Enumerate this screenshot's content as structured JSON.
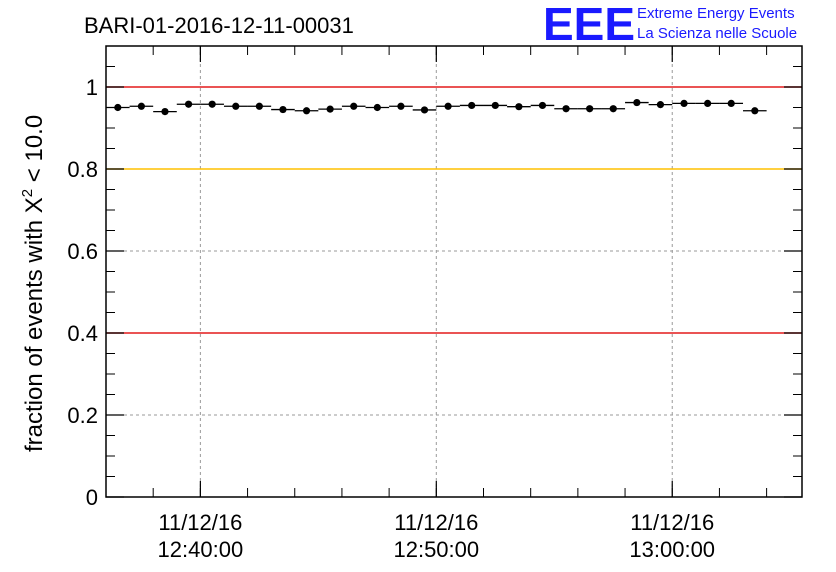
{
  "chart_data": {
    "type": "scatter",
    "title": "BARI-01-2016-12-11-00031",
    "ylabel_main": "fraction of events with ",
    "ylabel_chi": "X",
    "ylabel_exp": "2",
    "ylabel_tail": " < 10.0",
    "ylim": [
      0,
      1.1
    ],
    "yticks": [
      0,
      0.2,
      0.4,
      0.6,
      0.8,
      1
    ],
    "ytick_labels": [
      "0",
      "0.2",
      "0.4",
      "0.6",
      "0.8",
      "1"
    ],
    "xlim": [
      "2016-12-11T12:36:00",
      "2016-12-11T13:05:30"
    ],
    "xticks": [
      {
        "time": "2016-12-11T12:40:00",
        "date": "11/12/16",
        "clock": "12:40:00"
      },
      {
        "time": "2016-12-11T12:50:00",
        "date": "11/12/16",
        "clock": "12:50:00"
      },
      {
        "time": "2016-12-11T13:00:00",
        "date": "11/12/16",
        "clock": "13:00:00"
      }
    ],
    "grid": true,
    "reference_lines": [
      {
        "y": 1.0,
        "color": "#e41a1c"
      },
      {
        "y": 0.8,
        "color": "#ffc000"
      },
      {
        "y": 0.4,
        "color": "#e41a1c"
      }
    ],
    "bin_width_min": 1.0,
    "x_start": "2016-12-11T12:36:30",
    "points": [
      0.95,
      0.953,
      0.94,
      0.958,
      0.958,
      0.953,
      0.953,
      0.945,
      0.942,
      0.946,
      0.953,
      0.95,
      0.953,
      0.944,
      0.953,
      0.955,
      0.955,
      0.952,
      0.955,
      0.947,
      0.947,
      0.947,
      0.962,
      0.957,
      0.96,
      0.96,
      0.96,
      0.942
    ]
  },
  "logo": {
    "mark": "EEE",
    "line1": "Extreme Energy Events",
    "line2": "La Scienza nelle Scuole"
  }
}
